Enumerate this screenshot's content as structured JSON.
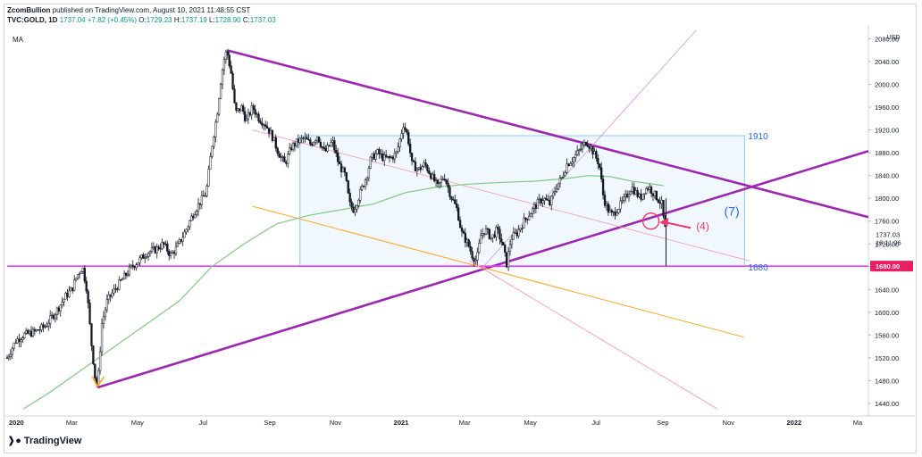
{
  "header": {
    "author": "ZcomBullion",
    "published_text": "published on TradingView.com, August 10, 2021 11:48:55 CST",
    "symbol": "TVC:GOLD, 1D",
    "last_price": "1737.04",
    "change": "+7.82 (+0.45%)",
    "ohlc_o_label": "O:",
    "ohlc_o": "1729.23",
    "ohlc_h_label": "H:",
    "ohlc_h": "1737.19",
    "ohlc_l_label": "L:",
    "ohlc_l": "1728.90",
    "ohlc_c_label": "C:",
    "ohlc_c": "1737.03"
  },
  "indicator_label": "MA",
  "footer": {
    "brand": "TradingView"
  },
  "colors": {
    "candle": "#131722",
    "ma": "#81c784",
    "purple": "#9c27b0",
    "pink": "#e040fb",
    "faint_pink": "#f48fb1",
    "orange": "#ffa726",
    "box_fill": "#e3f2fd",
    "box_stroke": "#90caf9",
    "arrow": "#f0366b",
    "blue_text": "#2962ff",
    "level_line": "#e040fb",
    "level_label_bg": "#e91e63"
  },
  "chart_data": {
    "type": "candlestick",
    "currency": "USD",
    "y_ticks": [
      "2080.00",
      "2040.00",
      "2000.00",
      "1960.00",
      "1920.00",
      "1880.00",
      "1840.00",
      "1800.00",
      "1760.00",
      "1720.00",
      "1680.00",
      "1640.00",
      "1600.00",
      "1560.00",
      "1520.00",
      "1480.00",
      "1440.00"
    ],
    "y_tick_values": [
      2080,
      2040,
      2000,
      1960,
      1920,
      1880,
      1840,
      1800,
      1760,
      1720,
      1680,
      1640,
      1600,
      1560,
      1520,
      1480,
      1440
    ],
    "ylim": [
      1418,
      2098
    ],
    "x_ticks": [
      "2020",
      "Mar",
      "May",
      "Jul",
      "Sep",
      "Nov",
      "2021",
      "Mar",
      "May",
      "Jul",
      "Sep",
      "Nov",
      "2022",
      "Ma"
    ],
    "x_tick_days": [
      0,
      60,
      121,
      182,
      244,
      305,
      366,
      425,
      486,
      547,
      609,
      670,
      731,
      790
    ],
    "xlim": [
      0,
      800
    ],
    "last_price_label": "1737.03",
    "countdown_label": "18:11:06",
    "level_label": "1680.00",
    "annotations": {
      "box_top_label": "1910",
      "box_bottom_label": "1680",
      "wave_label": "(7)",
      "arrow_label": "(4)"
    },
    "price_path": [
      [
        0,
        1520
      ],
      [
        8,
        1550
      ],
      [
        15,
        1560
      ],
      [
        25,
        1565
      ],
      [
        35,
        1575
      ],
      [
        45,
        1600
      ],
      [
        55,
        1630
      ],
      [
        60,
        1640
      ],
      [
        65,
        1665
      ],
      [
        70,
        1680
      ],
      [
        74,
        1640
      ],
      [
        78,
        1550
      ],
      [
        82,
        1480
      ],
      [
        84,
        1470
      ],
      [
        88,
        1580
      ],
      [
        93,
        1620
      ],
      [
        100,
        1640
      ],
      [
        108,
        1660
      ],
      [
        116,
        1680
      ],
      [
        122,
        1690
      ],
      [
        130,
        1705
      ],
      [
        138,
        1710
      ],
      [
        145,
        1720
      ],
      [
        152,
        1700
      ],
      [
        158,
        1715
      ],
      [
        165,
        1740
      ],
      [
        172,
        1770
      ],
      [
        178,
        1790
      ],
      [
        185,
        1810
      ],
      [
        190,
        1890
      ],
      [
        195,
        1950
      ],
      [
        198,
        2000
      ],
      [
        201,
        2040
      ],
      [
        204,
        2060
      ],
      [
        208,
        2020
      ],
      [
        212,
        1950
      ],
      [
        218,
        1960
      ],
      [
        222,
        1935
      ],
      [
        228,
        1960
      ],
      [
        234,
        1940
      ],
      [
        240,
        1930
      ],
      [
        246,
        1910
      ],
      [
        252,
        1880
      ],
      [
        258,
        1860
      ],
      [
        264,
        1890
      ],
      [
        270,
        1900
      ],
      [
        276,
        1905
      ],
      [
        282,
        1895
      ],
      [
        288,
        1910
      ],
      [
        295,
        1880
      ],
      [
        302,
        1900
      ],
      [
        308,
        1860
      ],
      [
        314,
        1840
      ],
      [
        318,
        1790
      ],
      [
        322,
        1780
      ],
      [
        328,
        1810
      ],
      [
        334,
        1840
      ],
      [
        338,
        1870
      ],
      [
        344,
        1880
      ],
      [
        350,
        1870
      ],
      [
        356,
        1870
      ],
      [
        362,
        1880
      ],
      [
        368,
        1930
      ],
      [
        372,
        1910
      ],
      [
        376,
        1860
      ],
      [
        382,
        1850
      ],
      [
        388,
        1860
      ],
      [
        394,
        1840
      ],
      [
        400,
        1820
      ],
      [
        406,
        1840
      ],
      [
        412,
        1805
      ],
      [
        418,
        1780
      ],
      [
        422,
        1740
      ],
      [
        428,
        1720
      ],
      [
        432,
        1700
      ],
      [
        436,
        1690
      ],
      [
        440,
        1735
      ],
      [
        444,
        1745
      ],
      [
        450,
        1730
      ],
      [
        455,
        1745
      ],
      [
        460,
        1720
      ],
      [
        464,
        1685
      ],
      [
        468,
        1730
      ],
      [
        474,
        1740
      ],
      [
        480,
        1760
      ],
      [
        486,
        1775
      ],
      [
        492,
        1790
      ],
      [
        498,
        1800
      ],
      [
        504,
        1790
      ],
      [
        510,
        1820
      ],
      [
        515,
        1835
      ],
      [
        520,
        1860
      ],
      [
        526,
        1870
      ],
      [
        532,
        1885
      ],
      [
        538,
        1900
      ],
      [
        542,
        1890
      ],
      [
        546,
        1875
      ],
      [
        550,
        1860
      ],
      [
        554,
        1800
      ],
      [
        558,
        1780
      ],
      [
        562,
        1770
      ],
      [
        566,
        1780
      ],
      [
        570,
        1790
      ],
      [
        574,
        1800
      ],
      [
        580,
        1820
      ],
      [
        584,
        1810
      ],
      [
        588,
        1800
      ],
      [
        592,
        1815
      ],
      [
        596,
        1820
      ],
      [
        600,
        1810
      ],
      [
        604,
        1800
      ],
      [
        608,
        1790
      ],
      [
        610,
        1760
      ],
      [
        612,
        1737
      ]
    ],
    "ma_path": [
      [
        15,
        1430
      ],
      [
        40,
        1460
      ],
      [
        70,
        1500
      ],
      [
        100,
        1540
      ],
      [
        130,
        1580
      ],
      [
        160,
        1620
      ],
      [
        190,
        1680
      ],
      [
        220,
        1720
      ],
      [
        250,
        1755
      ],
      [
        280,
        1770
      ],
      [
        310,
        1780
      ],
      [
        340,
        1790
      ],
      [
        370,
        1810
      ],
      [
        400,
        1820
      ],
      [
        430,
        1825
      ],
      [
        460,
        1828
      ],
      [
        490,
        1830
      ],
      [
        520,
        1835
      ],
      [
        540,
        1840
      ],
      [
        560,
        1838
      ],
      [
        580,
        1830
      ],
      [
        600,
        1825
      ],
      [
        610,
        1822
      ]
    ],
    "trendlines": [
      {
        "name": "upper-resistance",
        "from": [
          204,
          2060
        ],
        "to": [
          800,
          1767
        ]
      },
      {
        "name": "lower-support",
        "from": [
          84,
          1468
        ],
        "to": [
          800,
          1883
        ]
      },
      {
        "name": "level-1680",
        "from": [
          0,
          1681
        ],
        "to": [
          800,
          1681
        ]
      },
      {
        "name": "orange-channel",
        "from": [
          228,
          1786
        ],
        "to": [
          685,
          1556
        ]
      },
      {
        "name": "faint-down",
        "from": [
          228,
          1920
        ],
        "to": [
          690,
          1690
        ]
      },
      {
        "name": "faint-up",
        "from": [
          440,
          1675
        ],
        "to": [
          640,
          2095
        ]
      },
      {
        "name": "faint-steep",
        "from": [
          430,
          1690
        ],
        "to": [
          660,
          1430
        ]
      }
    ],
    "box": {
      "x0": 272,
      "x1": 685,
      "top": 1910,
      "bottom": 1680
    },
    "circle": {
      "x": 598,
      "y": 1760
    },
    "arrow": {
      "from": [
        635,
        1748
      ],
      "to": [
        606,
        1758
      ]
    }
  }
}
